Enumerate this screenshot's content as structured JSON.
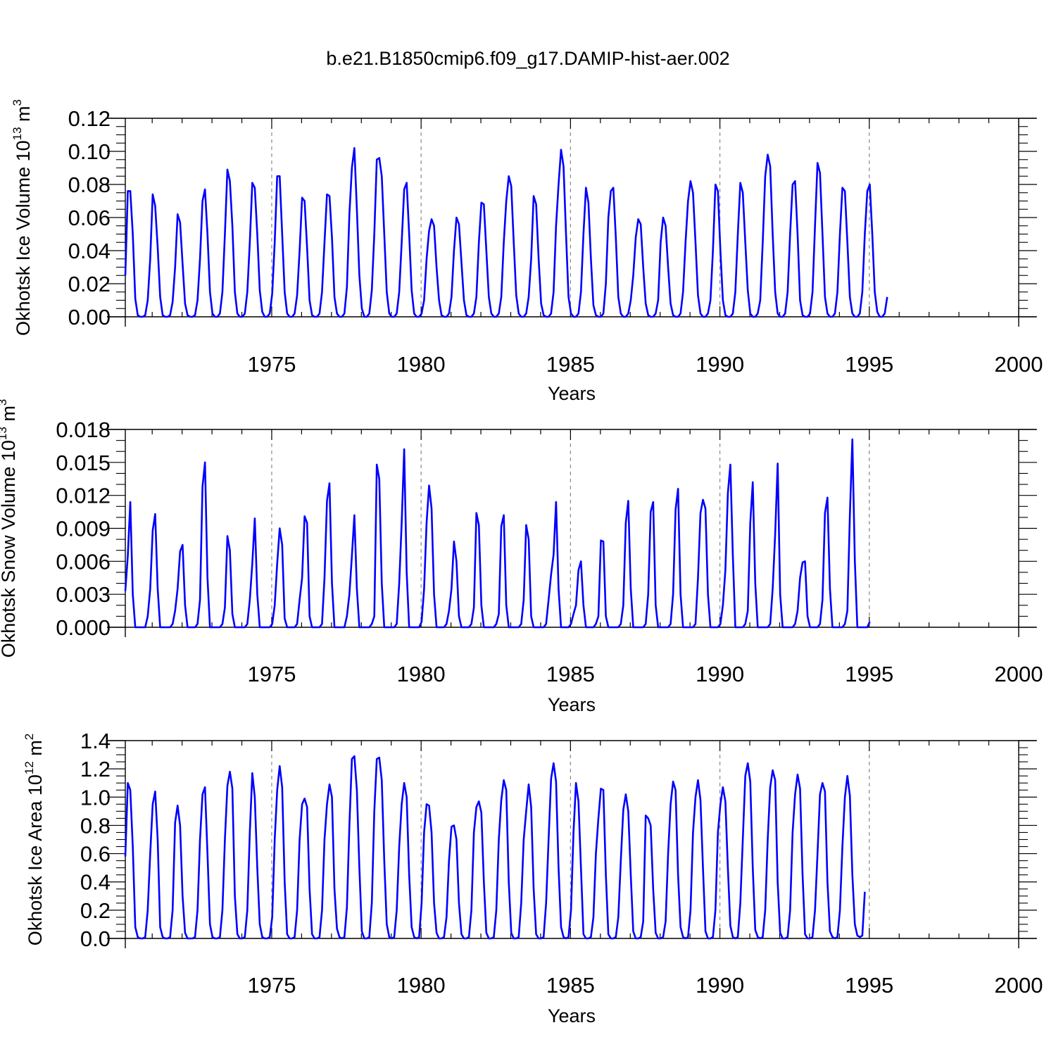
{
  "figure_title": "b.e21.B1850cmip6.f09_g17.DAMIP-hist-aer.002",
  "panels_meta": [
    {
      "ylabel_main": "Okhotsk Ice Volume 10",
      "ylabel_exp": "13",
      "ylabel_unit_base": " m",
      "ylabel_unit_exp": "3"
    },
    {
      "ylabel_main": "Okhotsk Snow Volume 10",
      "ylabel_exp": "13",
      "ylabel_unit_base": " m",
      "ylabel_unit_exp": "3"
    },
    {
      "ylabel_main": "Okhotsk Ice Area 10",
      "ylabel_exp": "12",
      "ylabel_unit_base": " m",
      "ylabel_unit_exp": "2"
    }
  ],
  "colors": {
    "line": "#0000ff",
    "axis": "#000000",
    "grid": "#888888"
  },
  "chart_data": [
    {
      "type": "line",
      "title": "b.e21.B1850cmip6.f09_g17.DAMIP-hist-aer.002",
      "xlabel": "Years",
      "ylabel": "Okhotsk Ice Volume 10^13 m^3",
      "xlim": [
        1970.1,
        2000
      ],
      "ylim": [
        0,
        0.12
      ],
      "xticks": [
        "1975",
        "1980",
        "1985",
        "1990",
        "1995",
        "2000"
      ],
      "yticks": [
        "0.00",
        "0.02",
        "0.04",
        "0.06",
        "0.08",
        "0.10",
        "0.12"
      ],
      "grid": "dashed vertical lines at 1975, 1980, 1985, 1990, 1995",
      "series": [
        {
          "name": "Okhotsk Ice Volume",
          "start": 1970.1,
          "step_years": 0.0833333,
          "values": [
            0.025,
            0.076,
            0.076,
            0.05,
            0.011,
            0.001,
            0,
            0,
            0.001,
            0.01,
            0.035,
            0.074,
            0.067,
            0.042,
            0.012,
            0.001,
            0,
            0,
            0.001,
            0.009,
            0.03,
            0.062,
            0.057,
            0.032,
            0.008,
            0.001,
            0,
            0,
            0.001,
            0.01,
            0.035,
            0.07,
            0.077,
            0.05,
            0.015,
            0.002,
            0,
            0,
            0.002,
            0.015,
            0.05,
            0.089,
            0.082,
            0.055,
            0.015,
            0.002,
            0,
            0,
            0.002,
            0.015,
            0.045,
            0.081,
            0.078,
            0.05,
            0.016,
            0.003,
            0,
            0,
            0.002,
            0.014,
            0.045,
            0.085,
            0.085,
            0.05,
            0.015,
            0.002,
            0,
            0,
            0.002,
            0.013,
            0.04,
            0.072,
            0.07,
            0.042,
            0.01,
            0.001,
            0,
            0,
            0.002,
            0.015,
            0.045,
            0.074,
            0.073,
            0.048,
            0.012,
            0.002,
            0,
            0,
            0.002,
            0.018,
            0.062,
            0.09,
            0.102,
            0.065,
            0.025,
            0.005,
            0,
            0,
            0.002,
            0.016,
            0.05,
            0.095,
            0.096,
            0.085,
            0.05,
            0.015,
            0.002,
            0,
            0,
            0.002,
            0.015,
            0.045,
            0.077,
            0.081,
            0.05,
            0.016,
            0.002,
            0,
            0,
            0.002,
            0.01,
            0.035,
            0.052,
            0.059,
            0.055,
            0.03,
            0.01,
            0.001,
            0,
            0,
            0.002,
            0.012,
            0.04,
            0.06,
            0.056,
            0.033,
            0.01,
            0.001,
            0,
            0,
            0.002,
            0.012,
            0.045,
            0.069,
            0.068,
            0.04,
            0.012,
            0.002,
            0,
            0,
            0.002,
            0.012,
            0.045,
            0.07,
            0.085,
            0.079,
            0.045,
            0.013,
            0.002,
            0,
            0,
            0.002,
            0.012,
            0.035,
            0.073,
            0.068,
            0.035,
            0.008,
            0.001,
            0,
            0,
            0.002,
            0.015,
            0.055,
            0.08,
            0.101,
            0.091,
            0.05,
            0.012,
            0.002,
            0,
            0,
            0.002,
            0.015,
            0.05,
            0.078,
            0.069,
            0.035,
            0.007,
            0.001,
            0,
            0,
            0.002,
            0.02,
            0.06,
            0.076,
            0.078,
            0.048,
            0.012,
            0.002,
            0,
            0,
            0.002,
            0.01,
            0.025,
            0.048,
            0.059,
            0.056,
            0.03,
            0.008,
            0.001,
            0,
            0,
            0.002,
            0.01,
            0.045,
            0.06,
            0.055,
            0.03,
            0.008,
            0.001,
            0,
            0,
            0.002,
            0.015,
            0.045,
            0.07,
            0.082,
            0.075,
            0.045,
            0.013,
            0.002,
            0,
            0,
            0.002,
            0.01,
            0.04,
            0.08,
            0.076,
            0.04,
            0.01,
            0.001,
            0,
            0,
            0.002,
            0.015,
            0.05,
            0.081,
            0.075,
            0.045,
            0.016,
            0.002,
            0,
            0,
            0.002,
            0.01,
            0.045,
            0.085,
            0.098,
            0.091,
            0.05,
            0.015,
            0.002,
            0,
            0,
            0.002,
            0.015,
            0.05,
            0.08,
            0.082,
            0.05,
            0.01,
            0.001,
            0,
            0,
            0.002,
            0.015,
            0.055,
            0.093,
            0.087,
            0.05,
            0.012,
            0.002,
            0,
            0,
            0.002,
            0.015,
            0.05,
            0.078,
            0.076,
            0.045,
            0.012,
            0.002,
            0,
            0,
            0.002,
            0.015,
            0.05,
            0.076,
            0.08,
            0.05,
            0.015,
            0.003,
            0,
            0,
            0.002,
            0.012
          ]
        }
      ]
    },
    {
      "type": "line",
      "xlabel": "Years",
      "ylabel": "Okhotsk Snow Volume 10^13 m^3",
      "xlim": [
        1970.1,
        2000
      ],
      "ylim": [
        0,
        0.018
      ],
      "xticks": [
        "1975",
        "1980",
        "1985",
        "1990",
        "1995",
        "2000"
      ],
      "yticks": [
        "0.000",
        "0.003",
        "0.006",
        "0.009",
        "0.012",
        "0.015",
        "0.018"
      ],
      "grid": "dashed vertical lines at 1975, 1980, 1985, 1990, 1995",
      "series": [
        {
          "name": "Okhotsk Snow Volume",
          "start": 1970.1,
          "step_years": 0.0833333,
          "values": [
            0.0033,
            0.0065,
            0.0114,
            0.003,
            0,
            0,
            0,
            0,
            0,
            0.001,
            0.0035,
            0.0088,
            0.0103,
            0.0035,
            0,
            0,
            0,
            0,
            0,
            0.0003,
            0.0015,
            0.0035,
            0.0069,
            0.0075,
            0.002,
            0,
            0,
            0,
            0,
            0.0003,
            0.0025,
            0.0128,
            0.015,
            0.0045,
            0,
            0,
            0,
            0,
            0,
            0.0003,
            0.0018,
            0.0083,
            0.007,
            0.0012,
            0,
            0,
            0,
            0,
            0,
            0.0003,
            0.0025,
            0.0058,
            0.0099,
            0.003,
            0,
            0,
            0,
            0,
            0,
            0.0003,
            0.002,
            0.0058,
            0.009,
            0.0075,
            0.0008,
            0,
            0,
            0,
            0,
            0.0003,
            0.0025,
            0.0045,
            0.0101,
            0.0095,
            0.001,
            0,
            0,
            0,
            0,
            0.0003,
            0.0045,
            0.0115,
            0.0131,
            0.004,
            0,
            0,
            0,
            0,
            0,
            0.001,
            0.003,
            0.0065,
            0.0102,
            0.0035,
            0,
            0,
            0,
            0,
            0,
            0.0003,
            0.001,
            0.0148,
            0.0135,
            0.004,
            0,
            0,
            0,
            0,
            0,
            0.0003,
            0.004,
            0.0095,
            0.0162,
            0.005,
            0,
            0,
            0,
            0,
            0,
            0.0005,
            0.0035,
            0.0095,
            0.0129,
            0.0108,
            0.003,
            0,
            0,
            0,
            0,
            0.0003,
            0.0015,
            0.0035,
            0.0078,
            0.006,
            0.001,
            0,
            0,
            0,
            0,
            0.0003,
            0.0018,
            0.0104,
            0.0093,
            0.002,
            0,
            0,
            0,
            0,
            0,
            0.0003,
            0.0012,
            0.0092,
            0.0102,
            0.002,
            0,
            0,
            0,
            0,
            0,
            0.0003,
            0.0025,
            0.0093,
            0.008,
            0.001,
            0,
            0,
            0,
            0,
            0,
            0.0003,
            0.0025,
            0.0048,
            0.0066,
            0.0114,
            0.0035,
            0,
            0,
            0,
            0,
            0.0003,
            0.0012,
            0.002,
            0.0052,
            0.006,
            0.002,
            0,
            0,
            0,
            0,
            0.0003,
            0.001,
            0.0079,
            0.0078,
            0.001,
            0,
            0,
            0,
            0,
            0,
            0.0003,
            0.002,
            0.0095,
            0.0115,
            0.0035,
            0,
            0,
            0,
            0,
            0,
            0.0003,
            0.003,
            0.0105,
            0.0114,
            0.002,
            0,
            0,
            0,
            0,
            0,
            0.0003,
            0.003,
            0.0107,
            0.0126,
            0.003,
            0,
            0,
            0,
            0,
            0,
            0.0003,
            0.0045,
            0.0104,
            0.0116,
            0.0108,
            0.003,
            0,
            0,
            0,
            0,
            0.0003,
            0.002,
            0.0052,
            0.0122,
            0.0148,
            0.0065,
            0,
            0,
            0,
            0,
            0.0003,
            0.0015,
            0.0095,
            0.0132,
            0.004,
            0,
            0,
            0,
            0,
            0,
            0.0003,
            0.0035,
            0.0085,
            0.0149,
            0.003,
            0,
            0,
            0,
            0,
            0,
            0.0003,
            0.0015,
            0.0045,
            0.0059,
            0.006,
            0.001,
            0,
            0,
            0,
            0,
            0.0003,
            0.0025,
            0.0104,
            0.0118,
            0.0035,
            0,
            0,
            0,
            0,
            0,
            0.0003,
            0.0015,
            0.0102,
            0.0171,
            0.006,
            0,
            0,
            0,
            0,
            0,
            0.0005
          ]
        }
      ]
    },
    {
      "type": "line",
      "xlabel": "Years",
      "ylabel": "Okhotsk Ice Area 10^12 m^2",
      "xlim": [
        1970.1,
        2000
      ],
      "ylim": [
        0,
        1.4
      ],
      "xticks": [
        "1975",
        "1980",
        "1985",
        "1990",
        "1995",
        "2000"
      ],
      "yticks": [
        "0.0",
        "0.2",
        "0.4",
        "0.6",
        "0.8",
        "1.0",
        "1.2",
        "1.4"
      ],
      "grid": "dashed vertical lines at 1975, 1980, 1985, 1990, 1995",
      "series": [
        {
          "name": "Okhotsk Ice Area",
          "start": 1970.1,
          "step_years": 0.0833333,
          "values": [
            0.58,
            1.1,
            1.05,
            0.65,
            0.08,
            0.01,
            0,
            0,
            0.01,
            0.2,
            0.6,
            0.95,
            1.04,
            0.7,
            0.08,
            0.01,
            0,
            0,
            0.01,
            0.2,
            0.82,
            0.94,
            0.8,
            0.3,
            0.04,
            0,
            0,
            0,
            0.01,
            0.2,
            0.7,
            1.02,
            1.07,
            0.6,
            0.1,
            0.01,
            0,
            0,
            0.01,
            0.2,
            0.7,
            1.08,
            1.18,
            1.06,
            0.3,
            0.03,
            0,
            0,
            0.01,
            0.2,
            0.75,
            1.17,
            1.0,
            0.5,
            0.1,
            0.01,
            0,
            0,
            0.01,
            0.15,
            0.7,
            1.05,
            1.22,
            1.07,
            0.4,
            0.03,
            0,
            0,
            0.01,
            0.2,
            0.7,
            0.95,
            0.99,
            0.93,
            0.35,
            0.03,
            0,
            0,
            0.01,
            0.2,
            0.7,
            0.95,
            1.09,
            1.0,
            0.35,
            0.07,
            0.01,
            0,
            0.01,
            0.22,
            0.8,
            1.27,
            1.29,
            1.05,
            0.5,
            0.05,
            0,
            0,
            0.01,
            0.25,
            0.9,
            1.27,
            1.28,
            1.12,
            0.55,
            0.1,
            0.01,
            0,
            0.01,
            0.2,
            0.65,
            0.95,
            1.1,
            1.0,
            0.45,
            0.08,
            0.01,
            0,
            0.01,
            0.25,
            0.75,
            0.95,
            0.94,
            0.75,
            0.25,
            0.04,
            0,
            0,
            0.01,
            0.15,
            0.55,
            0.79,
            0.8,
            0.7,
            0.25,
            0.03,
            0,
            0,
            0.01,
            0.2,
            0.75,
            0.93,
            0.97,
            0.89,
            0.4,
            0.04,
            0,
            0,
            0.01,
            0.2,
            0.7,
            0.98,
            1.12,
            1.05,
            0.4,
            0.04,
            0,
            0,
            0.01,
            0.25,
            0.7,
            0.9,
            1.09,
            0.93,
            0.35,
            0.03,
            0,
            0,
            0.01,
            0.25,
            0.7,
            1.13,
            1.24,
            1.11,
            0.5,
            0.08,
            0.01,
            0,
            0.01,
            0.2,
            0.75,
            1.1,
            0.97,
            0.5,
            0.03,
            0,
            0,
            0.01,
            0.15,
            0.6,
            0.85,
            1.06,
            1.05,
            0.45,
            0.03,
            0,
            0,
            0.01,
            0.15,
            0.55,
            0.91,
            1.02,
            0.9,
            0.45,
            0.05,
            0,
            0,
            0.01,
            0.12,
            0.87,
            0.85,
            0.8,
            0.35,
            0.04,
            0,
            0,
            0.01,
            0.12,
            0.6,
            0.95,
            1.11,
            1.05,
            0.45,
            0.08,
            0.01,
            0,
            0.01,
            0.2,
            0.75,
            1.0,
            1.12,
            0.98,
            0.5,
            0.05,
            0,
            0,
            0.01,
            0.2,
            0.75,
            0.95,
            1.07,
            0.97,
            0.5,
            0.09,
            0.01,
            0,
            0.01,
            0.25,
            0.7,
            1.15,
            1.24,
            1.11,
            0.5,
            0.06,
            0.01,
            0,
            0.01,
            0.2,
            0.7,
            1.07,
            1.19,
            1.12,
            0.4,
            0.04,
            0,
            0,
            0.01,
            0.2,
            0.75,
            1.02,
            1.16,
            1.06,
            0.45,
            0.03,
            0,
            0,
            0.01,
            0.2,
            0.6,
            1.02,
            1.1,
            1.04,
            0.4,
            0.05,
            0.01,
            0,
            0.01,
            0.2,
            0.65,
            1.0,
            1.15,
            1.01,
            0.45,
            0.1,
            0.02,
            0.01,
            0.02,
            0.33
          ]
        }
      ]
    }
  ]
}
